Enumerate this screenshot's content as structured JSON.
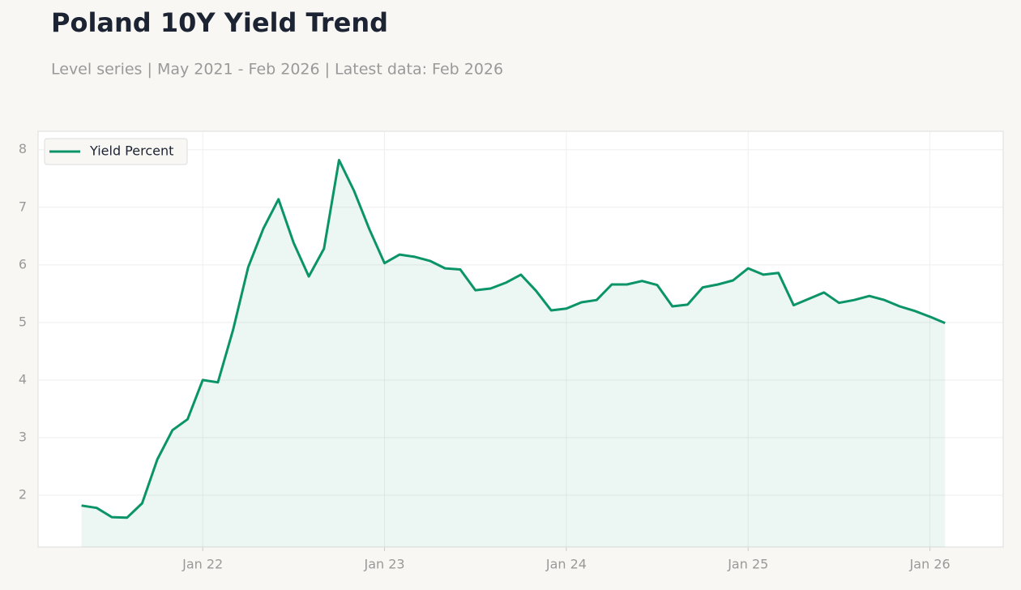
{
  "chart_data": {
    "type": "area_line",
    "title": "Poland 10Y Yield Trend",
    "subtitle": "Level series | May 2021 - Feb 2026 | Latest data: Feb 2026",
    "x": [
      "2021-05",
      "2021-06",
      "2021-07",
      "2021-08",
      "2021-09",
      "2021-10",
      "2021-11",
      "2021-12",
      "2022-01",
      "2022-02",
      "2022-03",
      "2022-04",
      "2022-05",
      "2022-06",
      "2022-07",
      "2022-08",
      "2022-09",
      "2022-10",
      "2022-11",
      "2022-12",
      "2023-01",
      "2023-02",
      "2023-03",
      "2023-04",
      "2023-05",
      "2023-06",
      "2023-07",
      "2023-08",
      "2023-09",
      "2023-10",
      "2023-11",
      "2023-12",
      "2024-01",
      "2024-02",
      "2024-03",
      "2024-04",
      "2024-05",
      "2024-06",
      "2024-07",
      "2024-08",
      "2024-09",
      "2024-10",
      "2024-11",
      "2024-12",
      "2025-01",
      "2025-02",
      "2025-03",
      "2025-04",
      "2025-05",
      "2025-06",
      "2025-07",
      "2025-08",
      "2025-09",
      "2025-10",
      "2025-11",
      "2025-12",
      "2026-01",
      "2026-02"
    ],
    "series": [
      {
        "name": "Yield Percent",
        "color": "#0a9467",
        "values": [
          1.82,
          1.78,
          1.62,
          1.61,
          1.86,
          2.62,
          3.13,
          3.32,
          4.0,
          3.96,
          4.87,
          5.96,
          6.63,
          7.14,
          6.38,
          5.8,
          6.28,
          7.82,
          7.28,
          6.62,
          6.03,
          6.18,
          6.14,
          6.07,
          5.94,
          5.92,
          5.56,
          5.59,
          5.69,
          5.83,
          5.55,
          5.21,
          5.24,
          5.35,
          5.39,
          5.66,
          5.66,
          5.72,
          5.65,
          5.28,
          5.31,
          5.61,
          5.66,
          5.73,
          5.94,
          5.83,
          5.86,
          5.3,
          5.41,
          5.52,
          5.34,
          5.39,
          5.46,
          5.39,
          5.28,
          5.2,
          5.1,
          4.99
        ]
      }
    ],
    "xlim": [
      "2021-02-05",
      "2026-05-26"
    ],
    "xticks": [
      {
        "value": "2022-01",
        "label": "Jan 22"
      },
      {
        "value": "2023-01",
        "label": "Jan 23"
      },
      {
        "value": "2024-01",
        "label": "Jan 24"
      },
      {
        "value": "2025-01",
        "label": "Jan 25"
      },
      {
        "value": "2026-01",
        "label": "Jan 26"
      }
    ],
    "ylim": [
      1.1,
      8.32
    ],
    "yticks": [
      2,
      3,
      4,
      5,
      6,
      7,
      8
    ],
    "grid": true,
    "legend": "upper-left"
  }
}
